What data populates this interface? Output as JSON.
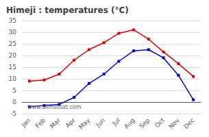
{
  "chart_data": {
    "type": "line",
    "title": "Himeji : temperatures (°C)",
    "annotation": "www.allmetsat.com",
    "categories": [
      "Jan",
      "Feb",
      "Mar",
      "Apr",
      "May",
      "Jun",
      "Jul",
      "Aug",
      "Sep",
      "Oct",
      "Nov",
      "Dec"
    ],
    "series": [
      {
        "color": "#dd0000",
        "marker": "square",
        "line_style": "solid",
        "values": [
          9,
          9.5,
          12,
          18,
          22.5,
          25.5,
          29.5,
          31,
          27,
          21.5,
          16.5,
          11
        ]
      },
      {
        "color": "#0000cc",
        "marker": "square",
        "line_style": "solid",
        "values": [
          -2,
          -1.5,
          -1,
          2,
          8,
          12,
          17.5,
          22,
          22.5,
          19,
          11.5,
          1
        ]
      }
    ],
    "ylim": [
      -5,
      35
    ],
    "yticks": [
      -5,
      0,
      5,
      10,
      15,
      20,
      25,
      30,
      35
    ],
    "grid": true
  }
}
